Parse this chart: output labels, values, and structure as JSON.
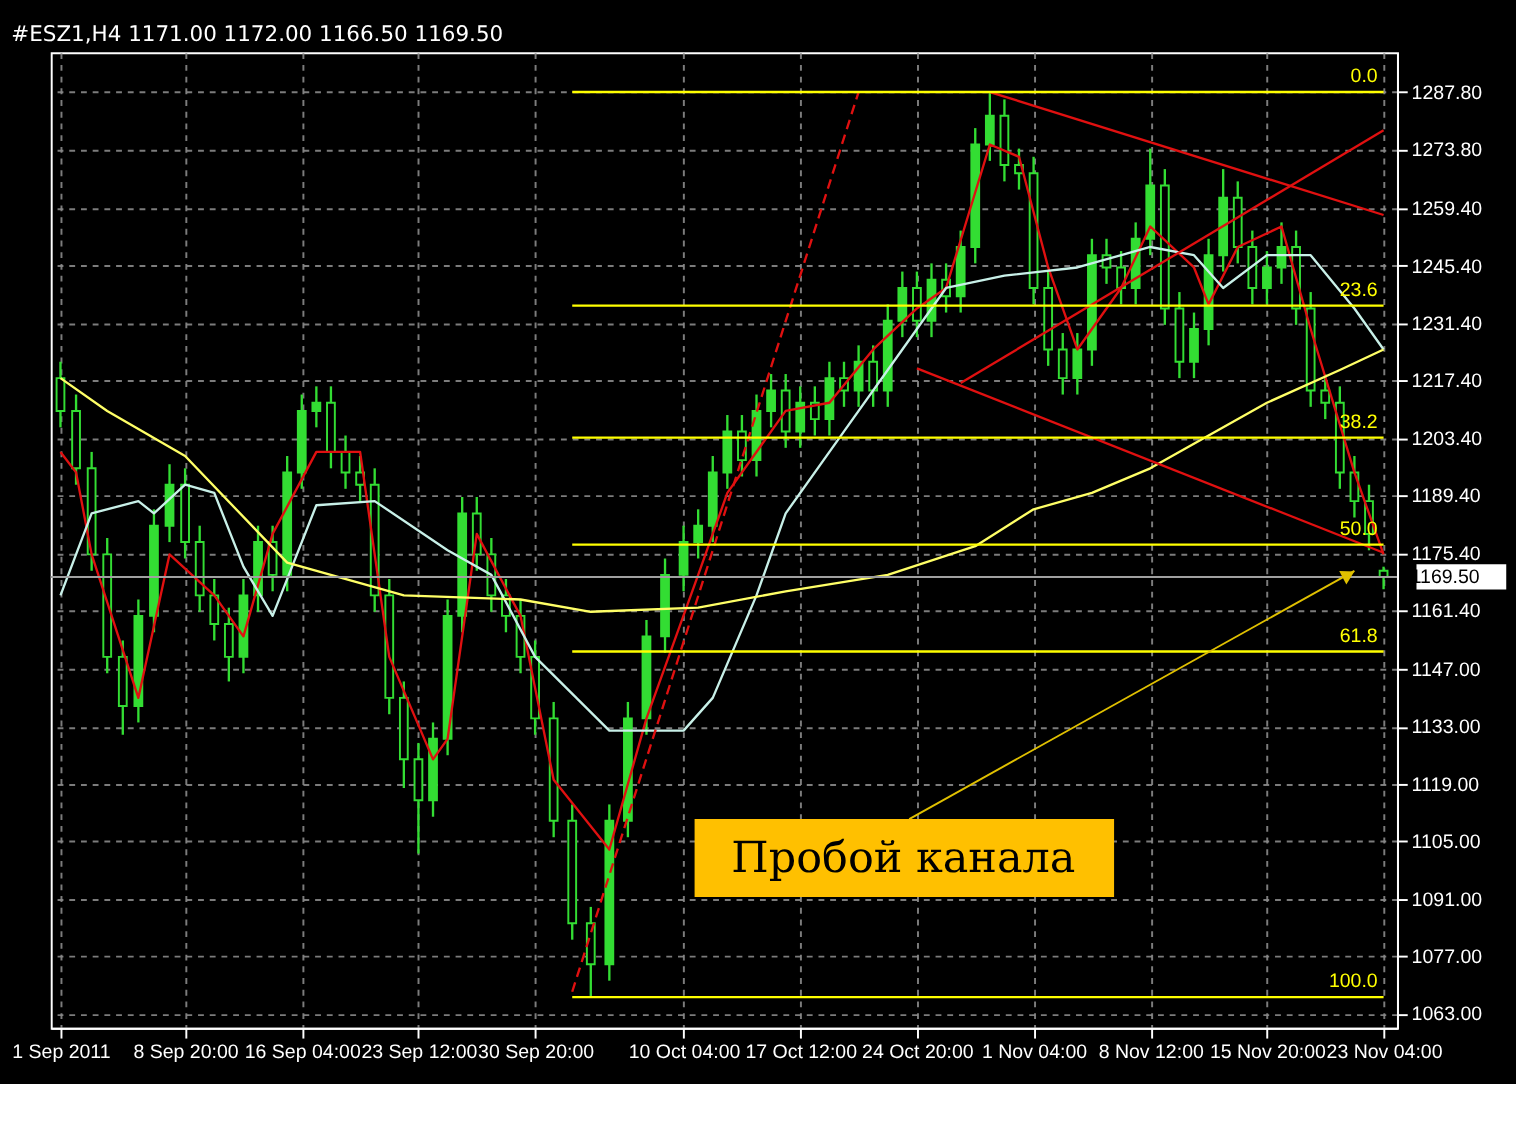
{
  "chart_data": {
    "type": "candlestick",
    "title": "#ESZ1,H4  1171.00 1172.00 1166.50 1169.50",
    "color": "#33dd33",
    "x": [
      "2011-09-01T00:00",
      "2011-09-01T23:30",
      "2011-09-02T23:00",
      "2011-09-03T22:30",
      "2011-09-04T22:00",
      "2011-09-05T21:30",
      "2011-09-06T21:00",
      "2011-09-07T20:30",
      "2011-09-08T20:00",
      "2011-09-09T18:00",
      "2011-09-10T16:00",
      "2011-09-11T14:00",
      "2011-09-12T12:00",
      "2011-09-13T10:00",
      "2011-09-14T08:00",
      "2011-09-15T06:00",
      "2011-09-16T04:00",
      "2011-09-17T02:00",
      "2011-09-18T00:00",
      "2011-09-18T22:00",
      "2011-09-19T20:00",
      "2011-09-20T18:00",
      "2011-09-21T16:00",
      "2011-09-22T14:00",
      "2011-09-23T12:00",
      "2011-09-24T10:00",
      "2011-09-25T08:00",
      "2011-09-26T06:00",
      "2011-09-27T04:00",
      "2011-09-28T02:00",
      "2011-09-29T00:00",
      "2011-09-29T22:00",
      "2011-09-30T20:00",
      "2011-10-02T00:00",
      "2011-10-03T04:00",
      "2011-10-04T08:00",
      "2011-10-05T12:00",
      "2011-10-06T16:00",
      "2011-10-07T20:00",
      "2011-10-09T00:00",
      "2011-10-10T04:00",
      "2011-10-11T02:00",
      "2011-10-12T00:00",
      "2011-10-12T22:00",
      "2011-10-13T20:00",
      "2011-10-14T18:00",
      "2011-10-15T16:00",
      "2011-10-16T14:00",
      "2011-10-17T12:00",
      "2011-10-18T10:00",
      "2011-10-19T08:00",
      "2011-10-20T06:00",
      "2011-10-21T04:00",
      "2011-10-22T02:00",
      "2011-10-23T00:00",
      "2011-10-23T22:00",
      "2011-10-24T20:00",
      "2011-10-25T18:00",
      "2011-10-26T16:00",
      "2011-10-27T14:00",
      "2011-10-28T12:00",
      "2011-10-29T10:00",
      "2011-10-30T08:00",
      "2011-10-31T06:00",
      "2011-11-01T04:00",
      "2011-11-02T02:00",
      "2011-11-03T00:00",
      "2011-11-03T22:00",
      "2011-11-04T20:00",
      "2011-11-05T18:00",
      "2011-11-06T16:00",
      "2011-11-07T14:00",
      "2011-11-08T12:00",
      "2011-11-09T10:00",
      "2011-11-10T08:00",
      "2011-11-11T06:00",
      "2011-11-12T04:00",
      "2011-11-13T02:00",
      "2011-11-14T00:00",
      "2011-11-14T22:00",
      "2011-11-15T20:00",
      "2011-11-16T18:00",
      "2011-11-17T16:00",
      "2011-11-18T14:00",
      "2011-11-19T12:00",
      "2011-11-20T10:00",
      "2011-11-21T08:00",
      "2011-11-22T06:00",
      "2011-11-23T04:00"
    ],
    "ohlc": [
      [
        1218,
        1222,
        1206,
        1210
      ],
      [
        1210,
        1214,
        1192,
        1196
      ],
      [
        1196,
        1200,
        1171,
        1175
      ],
      [
        1175,
        1179,
        1146,
        1150
      ],
      [
        1150,
        1154,
        1131,
        1138
      ],
      [
        1138,
        1164,
        1134,
        1160
      ],
      [
        1160,
        1186,
        1156,
        1182
      ],
      [
        1182,
        1197,
        1178,
        1192
      ],
      [
        1192,
        1196,
        1174,
        1178
      ],
      [
        1178,
        1182,
        1161,
        1165
      ],
      [
        1165,
        1169,
        1154,
        1158
      ],
      [
        1158,
        1162,
        1144,
        1150
      ],
      [
        1150,
        1169,
        1146,
        1165
      ],
      [
        1165,
        1182,
        1161,
        1178
      ],
      [
        1178,
        1182,
        1166,
        1170
      ],
      [
        1170,
        1199,
        1166,
        1195
      ],
      [
        1195,
        1214,
        1191,
        1210
      ],
      [
        1210,
        1216,
        1206,
        1212
      ],
      [
        1212,
        1216,
        1196,
        1200
      ],
      [
        1200,
        1204,
        1191,
        1195
      ],
      [
        1195,
        1199,
        1188,
        1192
      ],
      [
        1192,
        1196,
        1161,
        1165
      ],
      [
        1165,
        1169,
        1136,
        1140
      ],
      [
        1140,
        1144,
        1118,
        1125
      ],
      [
        1125,
        1129,
        1102,
        1115
      ],
      [
        1115,
        1134,
        1111,
        1130
      ],
      [
        1130,
        1164,
        1126,
        1160
      ],
      [
        1160,
        1189,
        1156,
        1185
      ],
      [
        1185,
        1189,
        1171,
        1175
      ],
      [
        1175,
        1179,
        1161,
        1165
      ],
      [
        1165,
        1169,
        1156,
        1160
      ],
      [
        1160,
        1164,
        1146,
        1150
      ],
      [
        1150,
        1154,
        1131,
        1135
      ],
      [
        1135,
        1139,
        1106,
        1110
      ],
      [
        1110,
        1114,
        1081,
        1085
      ],
      [
        1085,
        1089,
        1067,
        1075
      ],
      [
        1075,
        1114,
        1071,
        1110
      ],
      [
        1110,
        1139,
        1106,
        1135
      ],
      [
        1135,
        1159,
        1131,
        1155
      ],
      [
        1155,
        1174,
        1151,
        1170
      ],
      [
        1170,
        1182,
        1166,
        1178
      ],
      [
        1178,
        1186,
        1174,
        1182
      ],
      [
        1182,
        1199,
        1178,
        1195
      ],
      [
        1195,
        1209,
        1191,
        1205
      ],
      [
        1205,
        1209,
        1194,
        1198
      ],
      [
        1198,
        1214,
        1194,
        1210
      ],
      [
        1210,
        1219,
        1206,
        1215
      ],
      [
        1215,
        1219,
        1201,
        1205
      ],
      [
        1205,
        1216,
        1201,
        1212
      ],
      [
        1212,
        1216,
        1204,
        1208
      ],
      [
        1208,
        1222,
        1204,
        1218
      ],
      [
        1218,
        1222,
        1211,
        1215
      ],
      [
        1215,
        1226,
        1211,
        1222
      ],
      [
        1222,
        1226,
        1211,
        1215
      ],
      [
        1215,
        1236,
        1211,
        1232
      ],
      [
        1232,
        1244,
        1228,
        1240
      ],
      [
        1240,
        1244,
        1228,
        1232
      ],
      [
        1232,
        1246,
        1228,
        1242
      ],
      [
        1242,
        1246,
        1234,
        1238
      ],
      [
        1238,
        1254,
        1234,
        1250
      ],
      [
        1250,
        1279,
        1246,
        1275
      ],
      [
        1275,
        1287.8,
        1271,
        1282
      ],
      [
        1282,
        1286,
        1266,
        1270
      ],
      [
        1270,
        1274,
        1264,
        1268
      ],
      [
        1268,
        1272,
        1236,
        1240
      ],
      [
        1240,
        1244,
        1221,
        1225
      ],
      [
        1225,
        1229,
        1214,
        1218
      ],
      [
        1218,
        1229,
        1214,
        1225
      ],
      [
        1225,
        1252,
        1221,
        1248
      ],
      [
        1248,
        1252,
        1241,
        1245
      ],
      [
        1245,
        1249,
        1236,
        1240
      ],
      [
        1240,
        1256,
        1236,
        1252
      ],
      [
        1252,
        1274,
        1248,
        1265
      ],
      [
        1265,
        1269,
        1231,
        1235
      ],
      [
        1235,
        1239,
        1218,
        1222
      ],
      [
        1222,
        1234,
        1218,
        1230
      ],
      [
        1230,
        1252,
        1226,
        1248
      ],
      [
        1248,
        1269,
        1244,
        1262
      ],
      [
        1262,
        1266,
        1246,
        1250
      ],
      [
        1250,
        1254,
        1236,
        1240
      ],
      [
        1240,
        1249,
        1236,
        1245
      ],
      [
        1245,
        1256,
        1241,
        1250
      ],
      [
        1250,
        1254,
        1231,
        1235
      ],
      [
        1235,
        1239,
        1211,
        1215
      ],
      [
        1215,
        1219,
        1208,
        1212
      ],
      [
        1212,
        1216,
        1191,
        1195
      ],
      [
        1195,
        1199,
        1184,
        1188
      ],
      [
        1188,
        1192,
        1176,
        1180
      ],
      [
        1171,
        1172,
        1166.5,
        1169.5
      ]
    ],
    "xlim": [
      "2011-09-01T00:00",
      "2011-11-23T09:30"
    ],
    "xticks": [
      {
        "value": "2011-09-01T00:00",
        "label": "1 Sep 2011"
      },
      {
        "value": "2011-09-08T20:00",
        "label": "8 Sep 20:00"
      },
      {
        "value": "2011-09-16T04:00",
        "label": "16 Sep 04:00"
      },
      {
        "value": "2011-09-23T12:00",
        "label": "23 Sep 12:00"
      },
      {
        "value": "2011-09-30T20:00",
        "label": "30 Sep 20:00"
      },
      {
        "value": "2011-10-10T04:00",
        "label": "10 Oct 04:00"
      },
      {
        "value": "2011-10-17T12:00",
        "label": "17 Oct 12:00"
      },
      {
        "value": "2011-10-24T20:00",
        "label": "24 Oct 20:00"
      },
      {
        "value": "2011-11-01T04:00",
        "label": "1 Nov 04:00"
      },
      {
        "value": "2011-11-08T12:00",
        "label": "8 Nov 12:00"
      },
      {
        "value": "2011-11-15T20:00",
        "label": "15 Nov 20:00"
      },
      {
        "value": "2011-11-23T04:00",
        "label": "23 Nov 04:00"
      }
    ],
    "ylim": [
      1059.5,
      1297.5
    ],
    "yticks": [
      {
        "value": 1287.8,
        "label": "1287.80"
      },
      {
        "value": 1273.8,
        "label": "1273.80"
      },
      {
        "value": 1259.4,
        "label": "1259.40"
      },
      {
        "value": 1245.4,
        "label": "1245.40"
      },
      {
        "value": 1231.4,
        "label": "1231.40"
      },
      {
        "value": 1217.4,
        "label": "1217.40"
      },
      {
        "value": 1203.4,
        "label": "1203.40"
      },
      {
        "value": 1189.4,
        "label": "1189.40"
      },
      {
        "value": 1175.4,
        "label": "1175.40"
      },
      {
        "value": 1161.4,
        "label": "1161.40"
      },
      {
        "value": 1147,
        "label": "1147.00"
      },
      {
        "value": 1133,
        "label": "1133.00"
      },
      {
        "value": 1119,
        "label": "1119.00"
      },
      {
        "value": 1105,
        "label": "1105.00"
      },
      {
        "value": 1091,
        "label": "1091.00"
      },
      {
        "value": 1077,
        "label": "1077.00"
      },
      {
        "value": 1063,
        "label": "1063.00"
      }
    ],
    "grid": true,
    "series": [
      {
        "type": "line",
        "color": "#e01010",
        "x": [
          "2011-09-01T00:00",
          "2011-09-01T23:30",
          "2011-09-02T23:00",
          "2011-09-05T21:30",
          "2011-09-07T20:30",
          "2011-09-10T16:00",
          "2011-09-12T12:00",
          "2011-09-14T08:00",
          "2011-09-17T02:00",
          "2011-09-19T20:00",
          "2011-09-21T16:00",
          "2011-09-24T10:00",
          "2011-09-25T08:00",
          "2011-09-27T04:00",
          "2011-09-29T22:00",
          "2011-10-02T00:00",
          "2011-10-05T12:00",
          "2011-10-07T20:00",
          "2011-10-11T02:00",
          "2011-10-12T22:00",
          "2011-10-16T14:00",
          "2011-10-19T08:00",
          "2011-10-22T02:00",
          "2011-10-24T20:00",
          "2011-10-26T16:00",
          "2011-10-29T10:00",
          "2011-10-31T06:00",
          "2011-11-02T02:00",
          "2011-11-03T22:00",
          "2011-11-06T16:00",
          "2011-11-08T12:00",
          "2011-11-11T06:00",
          "2011-11-12T04:00",
          "2011-11-14T00:00",
          "2011-11-16T18:00",
          "2011-11-18T14:00",
          "2011-11-21T08:00",
          "2011-11-23T04:00"
        ],
        "values": [
          1200,
          1195,
          1175,
          1140,
          1175,
          1165,
          1155,
          1180,
          1200,
          1200,
          1150,
          1125,
          1130,
          1180,
          1160,
          1120,
          1103,
          1135,
          1170,
          1190,
          1210,
          1212,
          1225,
          1235,
          1240,
          1275,
          1272,
          1245,
          1225,
          1240,
          1255,
          1245,
          1236,
          1250,
          1255,
          1230,
          1195,
          1175
        ]
      },
      {
        "type": "line",
        "color": "#c8f0e8",
        "x": [
          "2011-09-01T00:00",
          "2011-09-02T23:00",
          "2011-09-05T21:30",
          "2011-09-06T21:00",
          "2011-09-08T20:00",
          "2011-09-10T16:00",
          "2011-09-12T12:00",
          "2011-09-14T08:00",
          "2011-09-17T02:00",
          "2011-09-20T18:00",
          "2011-09-25T08:00",
          "2011-09-28T02:00",
          "2011-09-30T20:00",
          "2011-10-05T12:00",
          "2011-10-10T04:00",
          "2011-10-12T00:00",
          "2011-10-14T18:00",
          "2011-10-16T14:00",
          "2011-10-20T06:00",
          "2011-10-23T22:00",
          "2011-10-26T16:00",
          "2011-10-30T08:00",
          "2011-11-03T22:00",
          "2011-11-08T12:00",
          "2011-11-11T06:00",
          "2011-11-13T02:00",
          "2011-11-15T20:00",
          "2011-11-18T14:00",
          "2011-11-21T08:00",
          "2011-11-23T04:00"
        ],
        "values": [
          1165,
          1185,
          1188,
          1185,
          1192,
          1190,
          1172,
          1160,
          1187,
          1188,
          1176,
          1170,
          1150,
          1132,
          1132,
          1140,
          1165,
          1185,
          1205,
          1225,
          1240,
          1243,
          1245,
          1250,
          1248,
          1240,
          1248,
          1248,
          1235,
          1225
        ]
      },
      {
        "type": "line",
        "color": "#ffff66",
        "x": [
          "2011-09-01T00:00",
          "2011-09-03T22:30",
          "2011-09-08T20:00",
          "2011-09-15T06:00",
          "2011-09-22T14:00",
          "2011-09-29T22:00",
          "2011-10-04T08:00",
          "2011-10-11T02:00",
          "2011-10-16T14:00",
          "2011-10-23T00:00",
          "2011-10-28T12:00",
          "2011-11-01T04:00",
          "2011-11-04T20:00",
          "2011-11-08T12:00",
          "2011-11-12T04:00",
          "2011-11-15T20:00",
          "2011-11-20T10:00",
          "2011-11-23T04:00"
        ],
        "values": [
          1218,
          1210,
          1199,
          1173,
          1165,
          1164,
          1161,
          1162,
          1166,
          1170,
          1177,
          1186,
          1190,
          1196,
          1204,
          1212,
          1220,
          1225
        ]
      },
      {
        "type": "line",
        "color": "#e01010",
        "x": [
          "2011-10-29T10:00",
          "2011-11-23T04:00"
        ],
        "values": [
          1287.8,
          1257.8
        ]
      },
      {
        "type": "line",
        "color": "#e01010",
        "x": [
          "2011-10-24T20:00",
          "2011-11-23T04:00"
        ],
        "values": [
          1220.4,
          1175.4
        ]
      },
      {
        "type": "line",
        "color": "#e01010",
        "x": [
          "2011-10-27T14:00",
          "2011-11-23T04:00"
        ],
        "values": [
          1216.8,
          1278.5
        ]
      },
      {
        "type": "line",
        "color": "#e01010",
        "line_style": "dashed",
        "x": [
          "2011-10-03T04:00",
          "2011-10-21T04:00"
        ],
        "values": [
          1068.3,
          1287.8
        ]
      },
      {
        "type": "line",
        "name": "0.0",
        "color": "#ffff00",
        "x": [
          "2011-10-03T04:00",
          "2011-11-23T04:00"
        ],
        "values": [
          1287.8,
          1287.8
        ]
      },
      {
        "type": "line",
        "name": "23.6",
        "color": "#ffff00",
        "x": [
          "2011-10-03T04:00",
          "2011-11-23T04:00"
        ],
        "values": [
          1235.7,
          1235.7
        ]
      },
      {
        "type": "line",
        "name": "38.2",
        "color": "#ffff00",
        "x": [
          "2011-10-03T04:00",
          "2011-11-23T04:00"
        ],
        "values": [
          1203.5,
          1203.5
        ]
      },
      {
        "type": "line",
        "name": "50.0",
        "color": "#ffff00",
        "x": [
          "2011-10-03T04:00",
          "2011-11-23T04:00"
        ],
        "values": [
          1177.4,
          1177.4
        ]
      },
      {
        "type": "line",
        "name": "61.8",
        "color": "#ffff00",
        "x": [
          "2011-10-03T04:00",
          "2011-11-23T04:00"
        ],
        "values": [
          1151.3,
          1151.3
        ]
      },
      {
        "type": "line",
        "name": "100.0",
        "color": "#ffff00",
        "x": [
          "2011-10-03T04:00",
          "2011-11-23T04:00"
        ],
        "values": [
          1067,
          1067
        ]
      }
    ],
    "ref_lines": [
      {
        "axis": "y",
        "value": 1169.5,
        "label": "1169.50",
        "color": "#a0a0a0"
      }
    ],
    "annotations": [
      {
        "text": "Пробой канала",
        "x": "2011-11-21T08:00",
        "y": 1171
      }
    ]
  }
}
